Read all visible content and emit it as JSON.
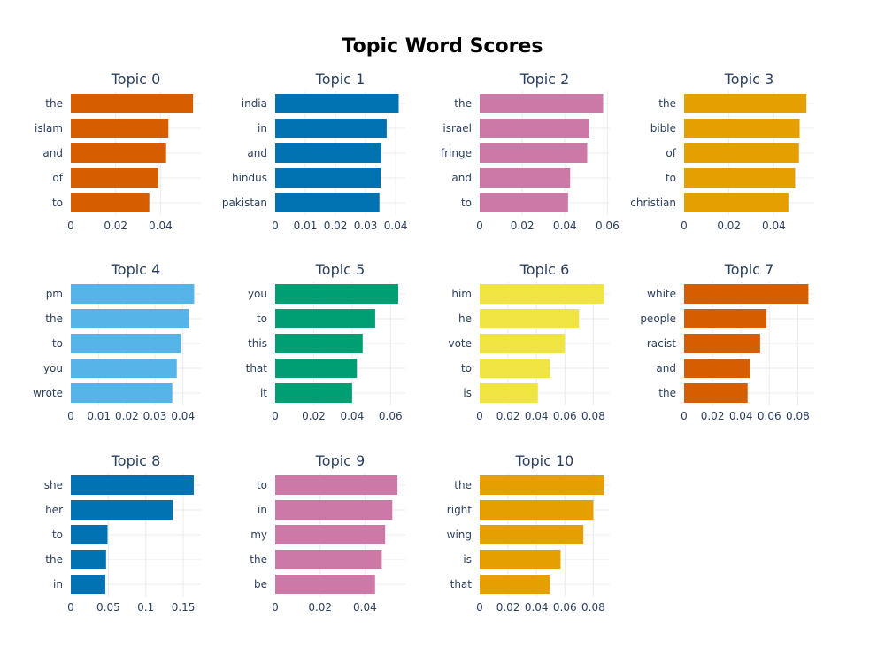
{
  "title": "Topic Word Scores",
  "chart_data": [
    {
      "type": "bar",
      "orientation": "horizontal",
      "title": "Topic 0",
      "color": "#D55E00",
      "categories": [
        "the",
        "islam",
        "and",
        "of",
        "to"
      ],
      "values": [
        0.0545,
        0.0435,
        0.0425,
        0.039,
        0.035
      ],
      "xticks": [
        0,
        0.02,
        0.04
      ],
      "xtick_labels": [
        "0",
        "0.02",
        "0.04"
      ],
      "xlim": [
        0,
        0.058
      ]
    },
    {
      "type": "bar",
      "orientation": "horizontal",
      "title": "Topic 1",
      "color": "#0072B2",
      "categories": [
        "india",
        "in",
        "and",
        "hindus",
        "pakistan"
      ],
      "values": [
        0.041,
        0.037,
        0.0352,
        0.035,
        0.0346
      ],
      "xticks": [
        0,
        0.01,
        0.02,
        0.03,
        0.04
      ],
      "xtick_labels": [
        "0",
        "0.01",
        "0.02",
        "0.03",
        "0.04"
      ],
      "xlim": [
        0,
        0.0432
      ]
    },
    {
      "type": "bar",
      "orientation": "horizontal",
      "title": "Topic 2",
      "color": "#CC79A7",
      "categories": [
        "the",
        "israel",
        "fringe",
        "and",
        "to"
      ],
      "values": [
        0.058,
        0.0515,
        0.0505,
        0.0425,
        0.0415
      ],
      "xticks": [
        0,
        0.02,
        0.04,
        0.06
      ],
      "xtick_labels": [
        "0",
        "0.02",
        "0.04",
        "0.06"
      ],
      "xlim": [
        0,
        0.0611
      ]
    },
    {
      "type": "bar",
      "orientation": "horizontal",
      "title": "Topic 3",
      "color": "#E69F00",
      "categories": [
        "the",
        "bible",
        "of",
        "to",
        "christian"
      ],
      "values": [
        0.0545,
        0.0515,
        0.0512,
        0.0495,
        0.0465
      ],
      "xticks": [
        0,
        0.02,
        0.04
      ],
      "xtick_labels": [
        "0",
        "0.02",
        "0.04"
      ],
      "xlim": [
        0,
        0.058
      ]
    },
    {
      "type": "bar",
      "orientation": "horizontal",
      "title": "Topic 4",
      "color": "#56B4E9",
      "categories": [
        "pm",
        "the",
        "to",
        "you",
        "wrote"
      ],
      "values": [
        0.044,
        0.0422,
        0.0393,
        0.0378,
        0.0362
      ],
      "xticks": [
        0,
        0.01,
        0.02,
        0.03,
        0.04
      ],
      "xtick_labels": [
        "0",
        "0.01",
        "0.02",
        "0.03",
        "0.04"
      ],
      "xlim": [
        0,
        0.0464
      ]
    },
    {
      "type": "bar",
      "orientation": "horizontal",
      "title": "Topic 5",
      "color": "#009E73",
      "categories": [
        "you",
        "to",
        "this",
        "that",
        "it"
      ],
      "values": [
        0.064,
        0.052,
        0.0455,
        0.0425,
        0.04
      ],
      "xticks": [
        0,
        0.02,
        0.04,
        0.06
      ],
      "xtick_labels": [
        "0",
        "0.02",
        "0.04",
        "0.06"
      ],
      "xlim": [
        0,
        0.0677
      ]
    },
    {
      "type": "bar",
      "orientation": "horizontal",
      "title": "Topic 6",
      "color": "#F0E442",
      "categories": [
        "him",
        "he",
        "vote",
        "to",
        "is"
      ],
      "values": [
        0.0875,
        0.07,
        0.06,
        0.0495,
        0.041
      ],
      "xticks": [
        0,
        0.02,
        0.04,
        0.06,
        0.08
      ],
      "xtick_labels": [
        "0",
        "0.02",
        "0.04",
        "0.06",
        "0.08"
      ],
      "xlim": [
        0,
        0.0916
      ]
    },
    {
      "type": "bar",
      "orientation": "horizontal",
      "title": "Topic 7",
      "color": "#D55E00",
      "categories": [
        "white",
        "people",
        "racist",
        "and",
        "the"
      ],
      "values": [
        0.0875,
        0.058,
        0.0535,
        0.0465,
        0.0447
      ],
      "xticks": [
        0,
        0.02,
        0.04,
        0.06,
        0.08
      ],
      "xtick_labels": [
        "0",
        "0.02",
        "0.04",
        "0.06",
        "0.08"
      ],
      "xlim": [
        0,
        0.0916
      ]
    },
    {
      "type": "bar",
      "orientation": "horizontal",
      "title": "Topic 8",
      "color": "#0072B2",
      "categories": [
        "she",
        "her",
        "to",
        "the",
        "in"
      ],
      "values": [
        0.164,
        0.136,
        0.049,
        0.047,
        0.046
      ],
      "xticks": [
        0,
        0.05,
        0.1,
        0.15
      ],
      "xtick_labels": [
        "0",
        "0.05",
        "0.1",
        "0.15"
      ],
      "xlim": [
        0,
        0.1735
      ]
    },
    {
      "type": "bar",
      "orientation": "horizontal",
      "title": "Topic 9",
      "color": "#CC79A7",
      "categories": [
        "to",
        "in",
        "my",
        "the",
        "be"
      ],
      "values": [
        0.0545,
        0.0522,
        0.049,
        0.0475,
        0.0445
      ],
      "xticks": [
        0,
        0.02,
        0.04
      ],
      "xtick_labels": [
        "0",
        "0.02",
        "0.04"
      ],
      "xlim": [
        0,
        0.058
      ]
    },
    {
      "type": "bar",
      "orientation": "horizontal",
      "title": "Topic 10",
      "color": "#E69F00",
      "categories": [
        "the",
        "right",
        "wing",
        "is",
        "that"
      ],
      "values": [
        0.0875,
        0.08,
        0.073,
        0.057,
        0.0495
      ],
      "xticks": [
        0,
        0.02,
        0.04,
        0.06,
        0.08
      ],
      "xtick_labels": [
        "0",
        "0.02",
        "0.04",
        "0.06",
        "0.08"
      ],
      "xlim": [
        0,
        0.0916
      ]
    }
  ]
}
